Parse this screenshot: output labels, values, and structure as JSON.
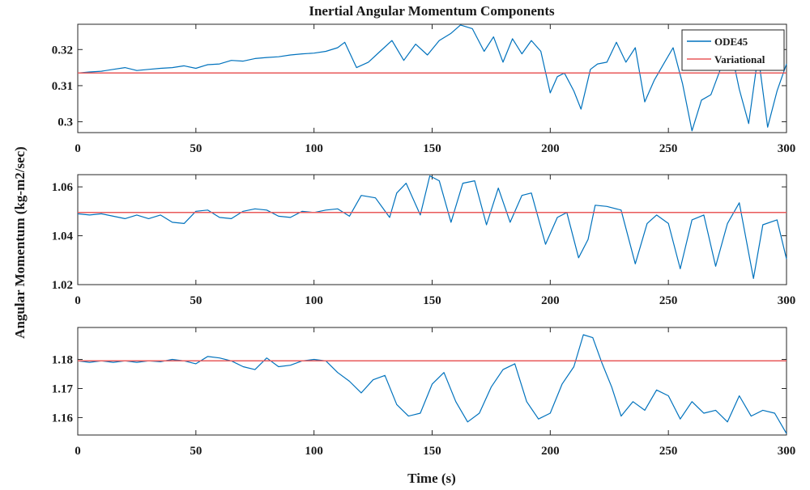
{
  "chart_data": {
    "type": "line",
    "title": "Inertial Angular Momentum Components",
    "xlabel": "Time (s)",
    "ylabel": "Angular Momentum (kg-m2/sec)",
    "colors": {
      "ODE45": "#0072BD",
      "Variational": "#E8595A"
    },
    "legend": {
      "placement": "top-right",
      "entries": [
        "ODE45",
        "Variational"
      ]
    },
    "subplots": [
      {
        "name": "component-1",
        "xlim": [
          0,
          300
        ],
        "ylim": [
          0.297,
          0.327
        ],
        "x_ticks": [
          0,
          50,
          100,
          150,
          200,
          250,
          300
        ],
        "y_ticks": [
          0.3,
          0.31,
          0.32
        ],
        "y_tick_labels": [
          "0.3",
          "0.31",
          "0.32"
        ],
        "grid": false,
        "series": [
          {
            "name": "ODE45",
            "x": [
              0,
              5,
              10,
              15,
              20,
              25,
              30,
              35,
              40,
              45,
              50,
              55,
              60,
              65,
              70,
              75,
              80,
              85,
              90,
              95,
              100,
              105,
              110,
              113,
              118,
              123,
              128,
              133,
              138,
              143,
              148,
              153,
              158,
              162,
              167,
              172,
              176,
              180,
              184,
              188,
              192,
              196,
              200,
              203,
              206,
              210,
              213,
              217,
              220,
              224,
              228,
              232,
              236,
              240,
              244,
              248,
              252,
              256,
              260,
              264,
              268,
              272,
              276,
              280,
              284,
              288,
              292,
              296,
              300
            ],
            "y": [
              0.3135,
              0.3138,
              0.314,
              0.3145,
              0.315,
              0.3142,
              0.3145,
              0.3148,
              0.315,
              0.3155,
              0.3148,
              0.3158,
              0.316,
              0.317,
              0.3168,
              0.3175,
              0.3178,
              0.318,
              0.3185,
              0.3188,
              0.319,
              0.3195,
              0.3205,
              0.322,
              0.315,
              0.3165,
              0.3195,
              0.3225,
              0.317,
              0.3215,
              0.3185,
              0.3225,
              0.3245,
              0.3268,
              0.3258,
              0.3195,
              0.3235,
              0.3165,
              0.323,
              0.3188,
              0.3225,
              0.3195,
              0.308,
              0.3125,
              0.3135,
              0.3085,
              0.3035,
              0.3145,
              0.316,
              0.3165,
              0.322,
              0.3165,
              0.3205,
              0.3055,
              0.3115,
              0.316,
              0.3205,
              0.3105,
              0.2975,
              0.306,
              0.3075,
              0.3145,
              0.3215,
              0.309,
              0.2995,
              0.3185,
              0.2985,
              0.3085,
              0.316
            ]
          },
          {
            "name": "Variational",
            "x": [
              0,
              300
            ],
            "y": [
              0.3135,
              0.3135
            ]
          }
        ]
      },
      {
        "name": "component-2",
        "xlim": [
          0,
          300
        ],
        "ylim": [
          1.02,
          1.065
        ],
        "x_ticks": [
          0,
          50,
          100,
          150,
          200,
          250,
          300
        ],
        "y_ticks": [
          1.02,
          1.04,
          1.06
        ],
        "y_tick_labels": [
          "1.02",
          "1.04",
          "1.06"
        ],
        "grid": false,
        "series": [
          {
            "name": "ODE45",
            "x": [
              0,
              5,
              10,
              15,
              20,
              25,
              30,
              35,
              40,
              45,
              50,
              55,
              60,
              65,
              70,
              75,
              80,
              85,
              90,
              95,
              100,
              105,
              110,
              115,
              120,
              126,
              132,
              135,
              139,
              145,
              149,
              153,
              158,
              163,
              168,
              173,
              178,
              183,
              188,
              192,
              198,
              203,
              207,
              212,
              216,
              219,
              224,
              230,
              236,
              241,
              245,
              250,
              255,
              260,
              265,
              270,
              275,
              280,
              286,
              290,
              296,
              300
            ],
            "y": [
              1.049,
              1.0485,
              1.049,
              1.048,
              1.047,
              1.0485,
              1.047,
              1.0485,
              1.0455,
              1.045,
              1.05,
              1.0505,
              1.0475,
              1.047,
              1.05,
              1.051,
              1.0505,
              1.048,
              1.0475,
              1.05,
              1.0495,
              1.0505,
              1.051,
              1.048,
              1.0565,
              1.0555,
              1.0475,
              1.0575,
              1.0615,
              1.0485,
              1.0645,
              1.0625,
              1.0455,
              1.0615,
              1.0625,
              1.0445,
              1.0595,
              1.0455,
              1.0565,
              1.0575,
              1.0365,
              1.0475,
              1.0495,
              1.031,
              1.0385,
              1.0525,
              1.052,
              1.0505,
              1.0285,
              1.045,
              1.0485,
              1.045,
              1.0265,
              1.0465,
              1.0485,
              1.0275,
              1.045,
              1.0535,
              1.0225,
              1.0445,
              1.0465,
              1.0305
            ]
          },
          {
            "name": "Variational",
            "x": [
              0,
              300
            ],
            "y": [
              1.0495,
              1.0495
            ]
          }
        ]
      },
      {
        "name": "component-3",
        "xlim": [
          0,
          300
        ],
        "ylim": [
          1.154,
          1.191
        ],
        "x_ticks": [
          0,
          50,
          100,
          150,
          200,
          250,
          300
        ],
        "y_ticks": [
          1.16,
          1.17,
          1.18
        ],
        "y_tick_labels": [
          "1.16",
          "1.17",
          "1.18"
        ],
        "grid": false,
        "series": [
          {
            "name": "ODE45",
            "x": [
              0,
              5,
              10,
              15,
              20,
              25,
              30,
              35,
              40,
              45,
              50,
              55,
              60,
              65,
              70,
              75,
              80,
              85,
              90,
              95,
              100,
              105,
              110,
              115,
              120,
              125,
              130,
              135,
              140,
              145,
              150,
              155,
              160,
              165,
              170,
              175,
              180,
              185,
              190,
              195,
              200,
              205,
              210,
              214,
              218,
              222,
              226,
              230,
              235,
              240,
              245,
              250,
              255,
              260,
              265,
              270,
              275,
              280,
              285,
              290,
              295,
              300
            ],
            "y": [
              1.1795,
              1.179,
              1.1795,
              1.179,
              1.1795,
              1.179,
              1.1795,
              1.1792,
              1.18,
              1.1795,
              1.1785,
              1.181,
              1.1805,
              1.1795,
              1.1775,
              1.1765,
              1.1805,
              1.1775,
              1.178,
              1.1795,
              1.18,
              1.1795,
              1.1755,
              1.1725,
              1.1685,
              1.173,
              1.1745,
              1.1645,
              1.1605,
              1.1615,
              1.1715,
              1.1755,
              1.1655,
              1.1585,
              1.1615,
              1.1705,
              1.1765,
              1.1785,
              1.1655,
              1.1595,
              1.1615,
              1.1715,
              1.1775,
              1.1885,
              1.1875,
              1.1785,
              1.1705,
              1.1605,
              1.1655,
              1.1625,
              1.1695,
              1.1675,
              1.1595,
              1.1655,
              1.1615,
              1.1625,
              1.1585,
              1.1675,
              1.1605,
              1.1625,
              1.1615,
              1.1545
            ]
          },
          {
            "name": "Variational",
            "x": [
              0,
              300
            ],
            "y": [
              1.1795,
              1.1795
            ]
          }
        ]
      }
    ]
  }
}
